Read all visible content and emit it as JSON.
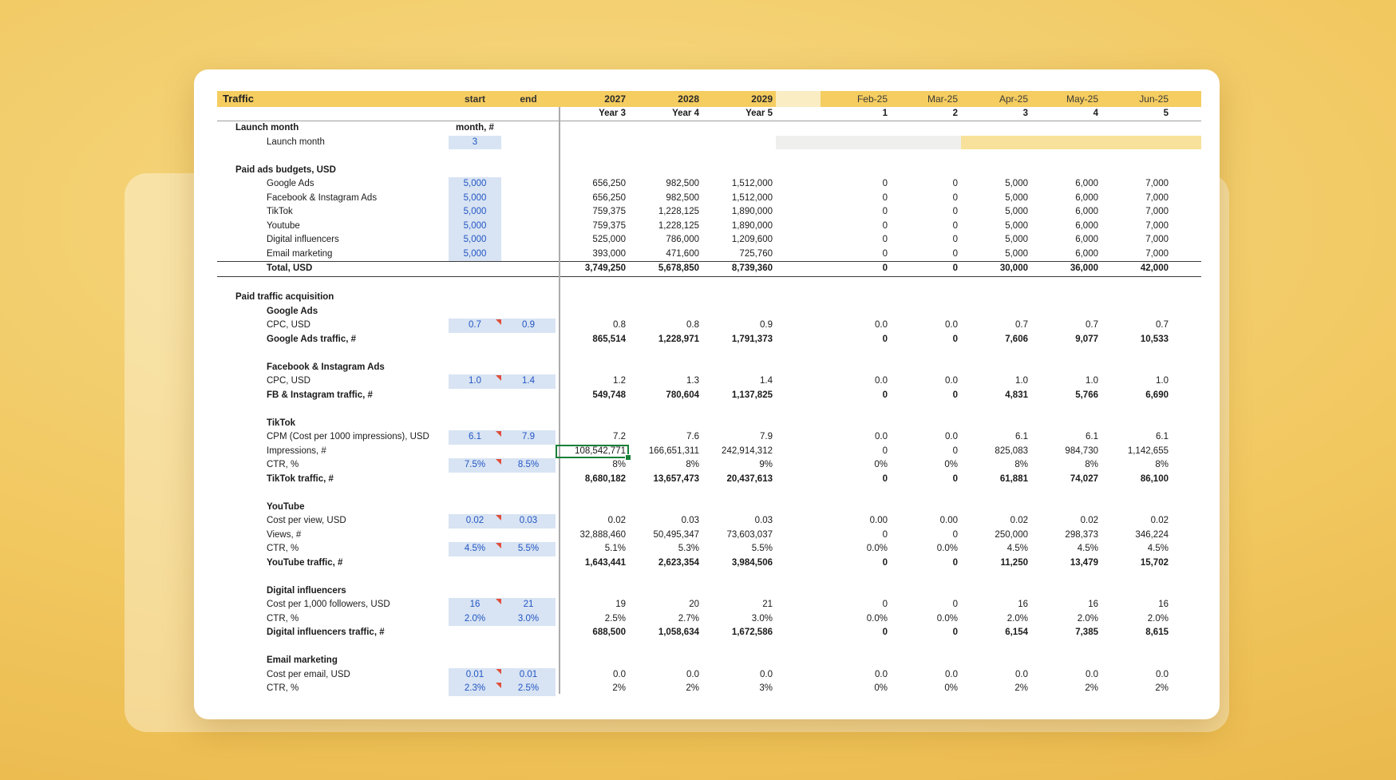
{
  "sheet": {
    "title": "Traffic",
    "header": {
      "start_label": "start",
      "end_label": "end",
      "year_cols": [
        {
          "label": "2027",
          "sub": "Year 3"
        },
        {
          "label": "2028",
          "sub": "Year 4"
        },
        {
          "label": "2029",
          "sub": "Year 5"
        }
      ],
      "month_cols": [
        {
          "label": "Feb-25",
          "sub": "1"
        },
        {
          "label": "Mar-25",
          "sub": "2"
        },
        {
          "label": "Apr-25",
          "sub": "3"
        },
        {
          "label": "May-25",
          "sub": "4"
        },
        {
          "label": "Jun-25",
          "sub": "5"
        }
      ]
    },
    "rows": [
      {
        "t": "item",
        "label": "Launch month",
        "bold": true,
        "ind": 1,
        "start": {
          "text": "month, #",
          "kind": "header"
        }
      },
      {
        "t": "item",
        "label": "Launch month",
        "ind": 2,
        "start": {
          "text": "3",
          "kind": "input"
        },
        "highlight": true
      },
      {
        "t": "blank"
      },
      {
        "t": "item",
        "label": "Paid ads budgets, USD",
        "bold": true,
        "ind": 1
      },
      {
        "t": "item",
        "label": "Google Ads",
        "ind": 2,
        "start": {
          "text": "5,000",
          "kind": "input"
        },
        "years": [
          "656,250",
          "982,500",
          "1,512,000"
        ],
        "months": [
          "0",
          "0",
          "5,000",
          "6,000",
          "7,000"
        ]
      },
      {
        "t": "item",
        "label": "Facebook & Instagram Ads",
        "ind": 2,
        "start": {
          "text": "5,000",
          "kind": "input"
        },
        "years": [
          "656,250",
          "982,500",
          "1,512,000"
        ],
        "months": [
          "0",
          "0",
          "5,000",
          "6,000",
          "7,000"
        ]
      },
      {
        "t": "item",
        "label": "TikTok",
        "ind": 2,
        "start": {
          "text": "5,000",
          "kind": "input"
        },
        "years": [
          "759,375",
          "1,228,125",
          "1,890,000"
        ],
        "months": [
          "0",
          "0",
          "5,000",
          "6,000",
          "7,000"
        ]
      },
      {
        "t": "item",
        "label": "Youtube",
        "ind": 2,
        "start": {
          "text": "5,000",
          "kind": "input"
        },
        "years": [
          "759,375",
          "1,228,125",
          "1,890,000"
        ],
        "months": [
          "0",
          "0",
          "5,000",
          "6,000",
          "7,000"
        ]
      },
      {
        "t": "item",
        "label": "Digital influencers",
        "ind": 2,
        "start": {
          "text": "5,000",
          "kind": "input"
        },
        "years": [
          "525,000",
          "786,000",
          "1,209,600"
        ],
        "months": [
          "0",
          "0",
          "5,000",
          "6,000",
          "7,000"
        ]
      },
      {
        "t": "item",
        "label": "Email marketing",
        "ind": 2,
        "start": {
          "text": "5,000",
          "kind": "input"
        },
        "years": [
          "393,000",
          "471,600",
          "725,760"
        ],
        "months": [
          "0",
          "0",
          "5,000",
          "6,000",
          "7,000"
        ]
      },
      {
        "t": "item",
        "label": "Total, USD",
        "bold": true,
        "ind": 2,
        "numBold": true,
        "rule": true,
        "years": [
          "3,749,250",
          "5,678,850",
          "8,739,360"
        ],
        "months": [
          "0",
          "0",
          "30,000",
          "36,000",
          "42,000"
        ]
      },
      {
        "t": "blank"
      },
      {
        "t": "item",
        "label": "Paid traffic acquisition",
        "bold": true,
        "ind": 1
      },
      {
        "t": "item",
        "label": "Google Ads",
        "bold": true,
        "ind": 2
      },
      {
        "t": "item",
        "label": "CPC, USD",
        "ind": 2,
        "start": {
          "text": "0.7",
          "kind": "input",
          "tri": true
        },
        "end": {
          "text": "0.9",
          "kind": "input"
        },
        "years": [
          "0.8",
          "0.8",
          "0.9"
        ],
        "months": [
          "0.0",
          "0.0",
          "0.7",
          "0.7",
          "0.7"
        ]
      },
      {
        "t": "item",
        "label": "Google Ads traffic, #",
        "bold": true,
        "ind": 2,
        "numBold": true,
        "years": [
          "865,514",
          "1,228,971",
          "1,791,373"
        ],
        "months": [
          "0",
          "0",
          "7,606",
          "9,077",
          "10,533"
        ]
      },
      {
        "t": "blank"
      },
      {
        "t": "item",
        "label": "Facebook & Instagram Ads",
        "bold": true,
        "ind": 2
      },
      {
        "t": "item",
        "label": "CPC, USD",
        "ind": 2,
        "start": {
          "text": "1.0",
          "kind": "input",
          "tri": true
        },
        "end": {
          "text": "1.4",
          "kind": "input"
        },
        "years": [
          "1.2",
          "1.3",
          "1.4"
        ],
        "months": [
          "0.0",
          "0.0",
          "1.0",
          "1.0",
          "1.0"
        ]
      },
      {
        "t": "item",
        "label": "FB & Instagram traffic, #",
        "bold": true,
        "ind": 2,
        "numBold": true,
        "years": [
          "549,748",
          "780,604",
          "1,137,825"
        ],
        "months": [
          "0",
          "0",
          "4,831",
          "5,766",
          "6,690"
        ]
      },
      {
        "t": "blank"
      },
      {
        "t": "item",
        "label": "TikTok",
        "bold": true,
        "ind": 2
      },
      {
        "t": "item",
        "label": "CPM (Cost per 1000 impressions), USD",
        "ind": 2,
        "start": {
          "text": "6.1",
          "kind": "input",
          "tri": true
        },
        "end": {
          "text": "7.9",
          "kind": "input"
        },
        "years": [
          "7.2",
          "7.6",
          "7.9"
        ],
        "months": [
          "0.0",
          "0.0",
          "6.1",
          "6.1",
          "6.1"
        ]
      },
      {
        "t": "item",
        "label": "Impressions, #",
        "ind": 2,
        "selected": 0,
        "years": [
          "108,542,771",
          "166,651,311",
          "242,914,312"
        ],
        "months": [
          "0",
          "0",
          "825,083",
          "984,730",
          "1,142,655"
        ]
      },
      {
        "t": "item",
        "label": "CTR, %",
        "ind": 2,
        "start": {
          "text": "7.5%",
          "kind": "input",
          "tri": true
        },
        "end": {
          "text": "8.5%",
          "kind": "input"
        },
        "years": [
          "8%",
          "8%",
          "9%"
        ],
        "months": [
          "0%",
          "0%",
          "8%",
          "8%",
          "8%"
        ]
      },
      {
        "t": "item",
        "label": "TikTok traffic, #",
        "bold": true,
        "ind": 2,
        "numBold": true,
        "years": [
          "8,680,182",
          "13,657,473",
          "20,437,613"
        ],
        "months": [
          "0",
          "0",
          "61,881",
          "74,027",
          "86,100"
        ]
      },
      {
        "t": "blank"
      },
      {
        "t": "item",
        "label": "YouTube",
        "bold": true,
        "ind": 2
      },
      {
        "t": "item",
        "label": "Cost per view, USD",
        "ind": 2,
        "start": {
          "text": "0.02",
          "kind": "input",
          "tri": true
        },
        "end": {
          "text": "0.03",
          "kind": "input"
        },
        "years": [
          "0.02",
          "0.03",
          "0.03"
        ],
        "months": [
          "0.00",
          "0.00",
          "0.02",
          "0.02",
          "0.02"
        ]
      },
      {
        "t": "item",
        "label": "Views, #",
        "ind": 2,
        "years": [
          "32,888,460",
          "50,495,347",
          "73,603,037"
        ],
        "months": [
          "0",
          "0",
          "250,000",
          "298,373",
          "346,224"
        ]
      },
      {
        "t": "item",
        "label": "CTR, %",
        "ind": 2,
        "start": {
          "text": "4.5%",
          "kind": "input",
          "tri": true
        },
        "end": {
          "text": "5.5%",
          "kind": "input"
        },
        "years": [
          "5.1%",
          "5.3%",
          "5.5%"
        ],
        "months": [
          "0.0%",
          "0.0%",
          "4.5%",
          "4.5%",
          "4.5%"
        ]
      },
      {
        "t": "item",
        "label": "YouTube traffic, #",
        "bold": true,
        "ind": 2,
        "numBold": true,
        "years": [
          "1,643,441",
          "2,623,354",
          "3,984,506"
        ],
        "months": [
          "0",
          "0",
          "11,250",
          "13,479",
          "15,702"
        ]
      },
      {
        "t": "blank"
      },
      {
        "t": "item",
        "label": "Digital influencers",
        "bold": true,
        "ind": 2
      },
      {
        "t": "item",
        "label": "Cost per 1,000 followers, USD",
        "ind": 2,
        "start": {
          "text": "16",
          "kind": "input",
          "tri": true
        },
        "end": {
          "text": "21",
          "kind": "input"
        },
        "years": [
          "19",
          "20",
          "21"
        ],
        "months": [
          "0",
          "0",
          "16",
          "16",
          "16"
        ]
      },
      {
        "t": "item",
        "label": "CTR, %",
        "ind": 2,
        "start": {
          "text": "2.0%",
          "kind": "input"
        },
        "end": {
          "text": "3.0%",
          "kind": "input"
        },
        "years": [
          "2.5%",
          "2.7%",
          "3.0%"
        ],
        "months": [
          "0.0%",
          "0.0%",
          "2.0%",
          "2.0%",
          "2.0%"
        ]
      },
      {
        "t": "item",
        "label": "Digital influencers traffic, #",
        "bold": true,
        "ind": 2,
        "numBold": true,
        "years": [
          "688,500",
          "1,058,634",
          "1,672,586"
        ],
        "months": [
          "0",
          "0",
          "6,154",
          "7,385",
          "8,615"
        ]
      },
      {
        "t": "blank"
      },
      {
        "t": "item",
        "label": "Email marketing",
        "bold": true,
        "ind": 2
      },
      {
        "t": "item",
        "label": "Cost per email, USD",
        "ind": 2,
        "start": {
          "text": "0.01",
          "kind": "input",
          "tri": true
        },
        "end": {
          "text": "0.01",
          "kind": "input"
        },
        "years": [
          "0.0",
          "0.0",
          "0.0"
        ],
        "months": [
          "0.0",
          "0.0",
          "0.0",
          "0.0",
          "0.0"
        ]
      },
      {
        "t": "item",
        "label": "CTR, %",
        "ind": 2,
        "start": {
          "text": "2.3%",
          "kind": "input",
          "tri": true
        },
        "end": {
          "text": "2.5%",
          "kind": "input"
        },
        "years": [
          "2%",
          "2%",
          "3%"
        ],
        "months": [
          "0%",
          "0%",
          "2%",
          "2%",
          "2%"
        ]
      }
    ]
  },
  "colors": {
    "band": "#F5CD60",
    "band_pale": "#FAEDC4",
    "input_bg": "#D8E4F3",
    "input_text": "#2355C4",
    "note": "#E04E3C",
    "selection": "#188038",
    "launch_gray": "#EFEFEE",
    "launch_yellow": "#F8E19A"
  }
}
